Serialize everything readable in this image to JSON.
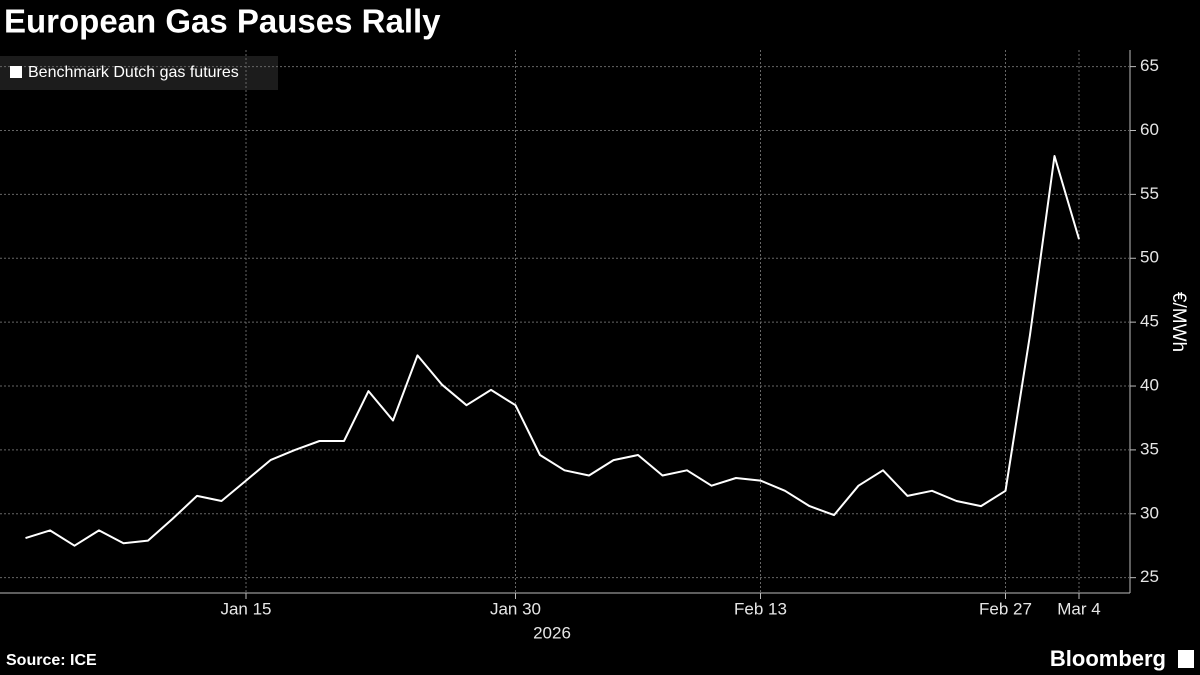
{
  "chart_data": {
    "type": "line",
    "title": "European Gas Pauses Rally",
    "ylabel": "€/MWh",
    "xlabel": "2026",
    "source": "Source: ICE",
    "logo": "Bloomberg",
    "x": [
      "2026-01-02",
      "2026-01-05",
      "2026-01-06",
      "2026-01-07",
      "2026-01-08",
      "2026-01-09",
      "2026-01-12",
      "2026-01-13",
      "2026-01-14",
      "2026-01-15",
      "2026-01-16",
      "2026-01-19",
      "2026-01-20",
      "2026-01-21",
      "2026-01-22",
      "2026-01-23",
      "2026-01-26",
      "2026-01-27",
      "2026-01-28",
      "2026-01-29",
      "2026-01-30",
      "2026-02-02",
      "2026-02-03",
      "2026-02-04",
      "2026-02-05",
      "2026-02-06",
      "2026-02-09",
      "2026-02-10",
      "2026-02-11",
      "2026-02-12",
      "2026-02-13",
      "2026-02-16",
      "2026-02-17",
      "2026-02-18",
      "2026-02-19",
      "2026-02-20",
      "2026-02-23",
      "2026-02-24",
      "2026-02-25",
      "2026-02-26",
      "2026-02-27",
      "2026-03-02",
      "2026-03-03",
      "2026-03-04"
    ],
    "series": [
      {
        "name": "Benchmark Dutch gas futures",
        "color": "#ffffff",
        "values": [
          28.1,
          28.7,
          27.5,
          28.7,
          27.7,
          27.9,
          29.6,
          31.4,
          31.0,
          32.6,
          34.2,
          35.0,
          35.7,
          35.7,
          39.6,
          37.3,
          42.4,
          40.1,
          38.5,
          39.7,
          38.5,
          34.6,
          33.4,
          33.0,
          34.2,
          34.6,
          33.0,
          33.4,
          32.2,
          32.8,
          32.6,
          31.8,
          30.6,
          29.9,
          32.2,
          33.4,
          31.4,
          31.8,
          31.0,
          30.6,
          31.8,
          44.0,
          58.0,
          51.5
        ]
      }
    ],
    "xticks": [
      {
        "value": "2026-01-15",
        "label": "Jan 15"
      },
      {
        "value": "2026-01-30",
        "label": "Jan 30"
      },
      {
        "value": "2026-02-13",
        "label": "Feb 13"
      },
      {
        "value": "2026-02-27",
        "label": "Feb 27"
      },
      {
        "value": "2026-03-04",
        "label": "Mar 4"
      }
    ],
    "ylim": [
      23.8,
      66.3
    ],
    "yticks": [
      25,
      30,
      35,
      40,
      45,
      50,
      55,
      60,
      65
    ],
    "grid": true,
    "legend": "top-left"
  }
}
